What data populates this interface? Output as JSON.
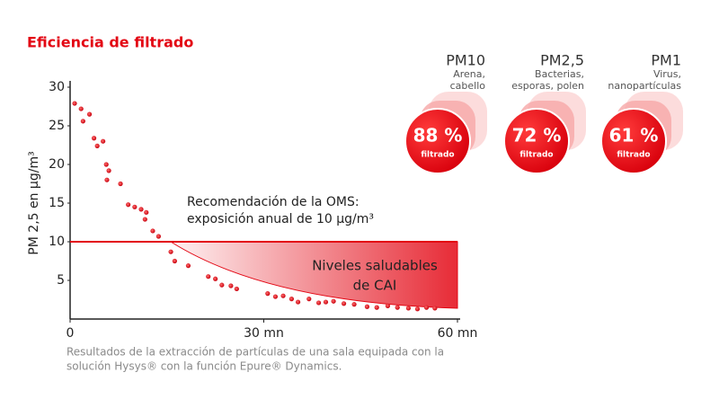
{
  "chart_data": {
    "type": "scatter",
    "title": "Eficiencia de filtrado",
    "y_label": "PM 2,5 en µg/m³",
    "color": "#e30613",
    "xlim": [
      0,
      60
    ],
    "ylim": [
      0,
      30
    ],
    "xticks": [
      0,
      {
        "value": 30,
        "label": "30 mn"
      },
      {
        "value": 60,
        "label": "60 mn"
      }
    ],
    "yticks": [
      5,
      10,
      15,
      20,
      25,
      30
    ],
    "grid": false,
    "x": [
      0.7,
      1.7,
      2,
      3,
      3.7,
      4.2,
      5.1,
      5.6,
      6,
      5.7,
      7.8,
      9,
      10,
      11,
      11.8,
      11.6,
      12.8,
      13.7,
      15.6,
      16.2,
      18.3,
      21.4,
      22.5,
      23.5,
      24.9,
      25.8,
      30.6,
      31.8,
      33,
      34.3,
      35.3,
      37,
      38.5,
      39.6,
      40.8,
      42.4,
      44,
      46,
      47.5,
      49.2,
      50.7,
      52.4,
      53.8,
      55.2,
      56.5
    ],
    "values": [
      27.9,
      27.2,
      25.6,
      26.5,
      23.4,
      22.4,
      23,
      20,
      19.2,
      18,
      17.5,
      14.8,
      14.5,
      14.2,
      13.8,
      12.9,
      11.4,
      10.7,
      8.7,
      7.5,
      6.9,
      5.5,
      5.2,
      4.4,
      4.3,
      3.9,
      3.3,
      2.9,
      3,
      2.6,
      2.2,
      2.6,
      2.1,
      2.2,
      2.3,
      2,
      1.9,
      1.6,
      1.5,
      1.7,
      1.5,
      1.4,
      1.3,
      1.5,
      1.4
    ],
    "reference_line": {
      "value": 10,
      "label": [
        "Recomendación de la OMS:",
        "exposición anual de 10 µg/m³"
      ]
    },
    "zone_label": [
      "Niveles saludables",
      "de CAI"
    ],
    "caption": [
      "Resultados de la extracción de partículas de una sala equipada con la",
      "solución Hysys® con la función Epure® Dynamics."
    ],
    "badges": {
      "names": [
        "PM10",
        "PM2,5",
        "PM1"
      ],
      "descriptions": [
        [
          "Arena,",
          "cabello"
        ],
        [
          "Bacterias,",
          "esporas, polen"
        ],
        [
          "Virus,",
          "nanopartículas"
        ]
      ],
      "values": [
        88,
        72,
        61
      ],
      "value_labels": [
        "88 %",
        "72 %",
        "61 %"
      ],
      "sub_label": "filtrado"
    }
  }
}
